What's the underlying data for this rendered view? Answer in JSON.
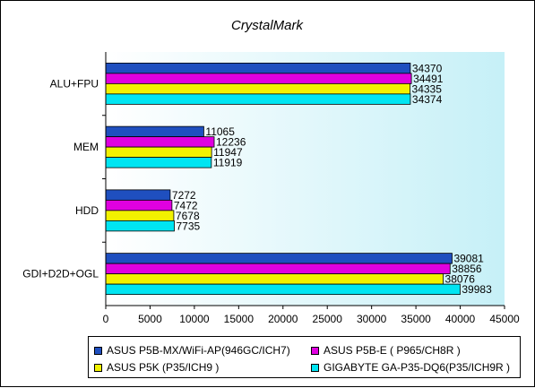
{
  "chart_data": {
    "type": "bar",
    "orientation": "horizontal",
    "title": "CrystalMark",
    "categories": [
      "ALU+FPU",
      "MEM",
      "HDD",
      "GDI+D2D+OGL"
    ],
    "series": [
      {
        "name": "ASUS P5B-MX/WiFi-AP(946GC/ICH7)",
        "color": "#1f4fbf",
        "values": [
          34370,
          11065,
          7272,
          39081
        ]
      },
      {
        "name": "ASUS P5B-E ( P965/CH8R )",
        "color": "#e000e0",
        "values": [
          34491,
          12236,
          7472,
          38856
        ]
      },
      {
        "name": "ASUS P5K (P35/ICH9 )",
        "color": "#f2f200",
        "values": [
          34335,
          11947,
          7678,
          38076
        ]
      },
      {
        "name": "GIGABYTE GA-P35-DQ6(P35/ICH9R )",
        "color": "#00e5f2",
        "values": [
          34374,
          11919,
          7735,
          39983
        ]
      }
    ],
    "xlim": [
      0,
      45000
    ],
    "xticks": [
      0,
      5000,
      10000,
      15000,
      20000,
      25000,
      30000,
      35000,
      40000,
      45000
    ],
    "grid": false,
    "legend_position": "bottom",
    "data_labels": true
  }
}
